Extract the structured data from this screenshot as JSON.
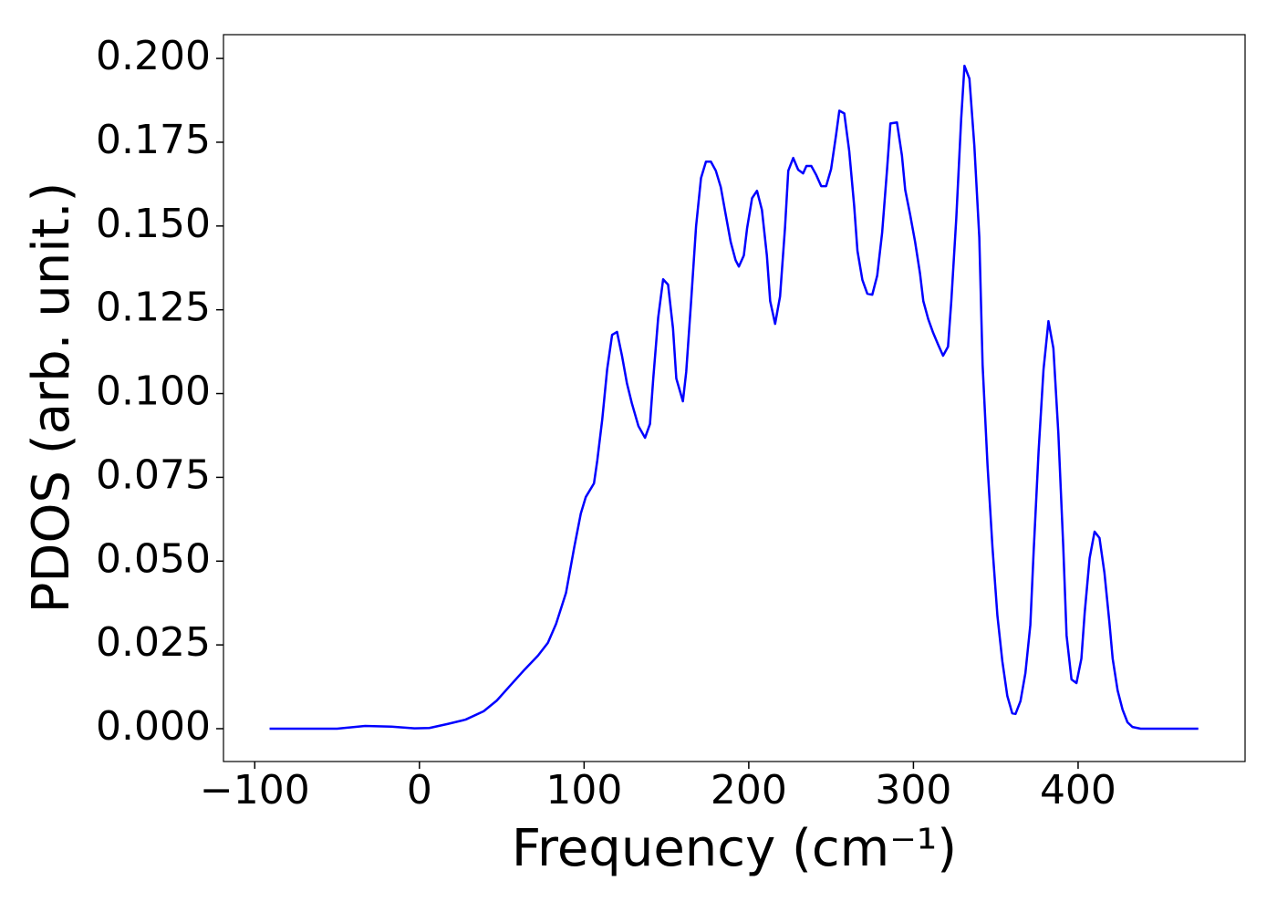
{
  "chart_data": {
    "type": "line",
    "xlabel": "Frequency (cm⁻¹)",
    "ylabel": "PDOS (arb. unit.)",
    "color": "#0000ff",
    "x": [
      -91,
      -50,
      -33,
      -17,
      -3,
      6,
      17,
      28,
      39,
      47,
      55,
      64,
      72,
      78,
      83,
      89,
      94,
      98,
      101,
      106,
      108,
      111,
      114,
      117,
      120,
      123,
      126,
      129,
      133,
      137,
      140,
      142,
      145,
      148,
      151,
      154,
      156,
      160,
      162,
      165,
      168,
      171,
      174,
      177,
      180,
      183,
      186,
      189,
      192,
      194,
      197,
      199,
      202,
      205,
      208,
      211,
      213,
      216,
      219,
      222,
      224,
      227,
      230,
      233,
      235,
      238,
      241,
      244,
      247,
      250,
      253,
      255,
      258,
      261,
      264,
      266,
      269,
      272,
      275,
      278,
      281,
      284,
      286,
      290,
      293,
      295,
      298,
      301,
      304,
      306,
      309,
      312,
      315,
      318,
      321,
      323,
      326,
      329,
      331,
      334,
      337,
      340,
      342,
      345,
      348,
      351,
      354,
      357,
      360,
      362,
      365,
      368,
      371,
      373,
      376,
      379,
      382,
      385,
      388,
      391,
      393,
      396,
      399,
      402,
      404,
      407,
      410,
      413,
      416,
      419,
      421,
      424,
      427,
      430,
      433,
      438,
      473
    ],
    "values": [
      0,
      0,
      0.0008,
      0.0006,
      0.0001,
      0.0002,
      0.0014,
      0.0027,
      0.0052,
      0.0084,
      0.0128,
      0.0177,
      0.0218,
      0.0256,
      0.0313,
      0.0405,
      0.0541,
      0.0642,
      0.0691,
      0.0732,
      0.08,
      0.0922,
      0.1072,
      0.1175,
      0.1184,
      0.1113,
      0.1031,
      0.0971,
      0.0903,
      0.0868,
      0.0909,
      0.1045,
      0.1227,
      0.1341,
      0.1325,
      0.1194,
      0.1045,
      0.0977,
      0.1064,
      0.1276,
      0.1499,
      0.1643,
      0.1692,
      0.1692,
      0.1665,
      0.1616,
      0.1534,
      0.1453,
      0.1398,
      0.1379,
      0.1412,
      0.1494,
      0.1583,
      0.1605,
      0.1548,
      0.1412,
      0.1276,
      0.1208,
      0.129,
      0.1494,
      0.1665,
      0.1703,
      0.1668,
      0.1657,
      0.1679,
      0.1679,
      0.1652,
      0.1619,
      0.1619,
      0.167,
      0.1771,
      0.1844,
      0.1836,
      0.1724,
      0.1561,
      0.1426,
      0.1339,
      0.1298,
      0.1295,
      0.1352,
      0.148,
      0.167,
      0.1806,
      0.1809,
      0.1711,
      0.1608,
      0.1534,
      0.1453,
      0.1358,
      0.1276,
      0.1222,
      0.1181,
      0.1146,
      0.1113,
      0.114,
      0.1276,
      0.1521,
      0.182,
      0.1978,
      0.194,
      0.1739,
      0.1466,
      0.1086,
      0.0786,
      0.0541,
      0.0337,
      0.0201,
      0.0098,
      0.0046,
      0.0044,
      0.0082,
      0.0166,
      0.031,
      0.0528,
      0.0827,
      0.1072,
      0.1216,
      0.1135,
      0.0882,
      0.0541,
      0.0278,
      0.0147,
      0.0136,
      0.0209,
      0.0346,
      0.0509,
      0.0588,
      0.0569,
      0.0465,
      0.0318,
      0.0209,
      0.0114,
      0.0057,
      0.0019,
      0.0005,
      0,
      0
    ],
    "xlim": [
      -119,
      501.4
    ],
    "ylim": [
      -0.0098,
      0.2071
    ],
    "xticks": [
      {
        "value": -100,
        "label": "−100"
      },
      0,
      100,
      200,
      300,
      400
    ],
    "yticks": [
      {
        "value": 0,
        "label": "0.000"
      },
      {
        "value": 0.025,
        "label": "0.025"
      },
      {
        "value": 0.05,
        "label": "0.050"
      },
      {
        "value": 0.075,
        "label": "0.075"
      },
      {
        "value": 0.1,
        "label": "0.100"
      },
      {
        "value": 0.125,
        "label": "0.125"
      },
      {
        "value": 0.15,
        "label": "0.150"
      },
      {
        "value": 0.175,
        "label": "0.175"
      },
      {
        "value": 0.2,
        "label": "0.200"
      }
    ]
  }
}
